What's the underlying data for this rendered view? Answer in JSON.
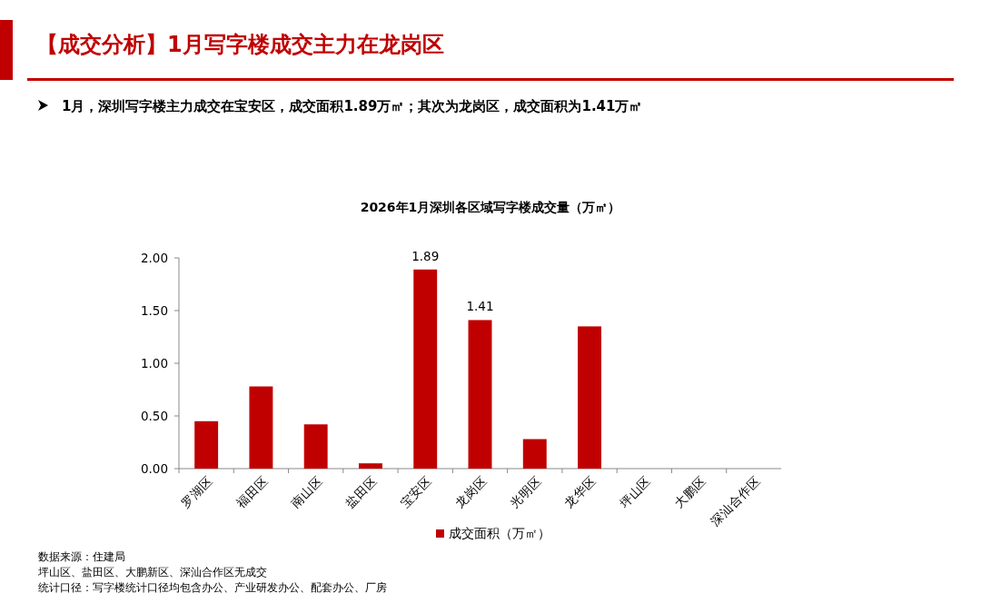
{
  "chart_data": {
    "type": "bar",
    "title": "【成交分析】1月写字楼成交主力在龙岗区",
    "subtitle": "1月，深圳写字楼主力成交在宝安区，成交面积1.89万㎡；其次为龙岗区，成交面积为1.41万㎡",
    "categories": [
      "罗湖区",
      "福田区",
      "南山区",
      "盐田区",
      "宝安区",
      "龙岗区",
      "光明区",
      "龙华区",
      "坪山区",
      "大鹏区",
      "深汕合作区"
    ],
    "series": [
      {
        "name": "成交面积（万㎡）",
        "color": "#c00000",
        "values": [
          0.45,
          0.78,
          0.42,
          0.05,
          1.89,
          1.41,
          0.28,
          1.35,
          0,
          0,
          0
        ],
        "value_labels": [
          null,
          null,
          null,
          null,
          "1.89",
          "1.41",
          null,
          null,
          null,
          null,
          null
        ]
      }
    ],
    "ylim": [
      0,
      2
    ],
    "yticks": [
      {
        "value": 0,
        "label": "0.00"
      },
      {
        "value": 0.5,
        "label": "0.50"
      },
      {
        "value": 1,
        "label": "1.00"
      },
      {
        "value": 1.5,
        "label": "1.50"
      },
      {
        "value": 2,
        "label": "2.00"
      }
    ],
    "grid": false,
    "legend": "bottom",
    "annotations": [
      "2026年1月深圳各区域写字楼成交量（万㎡）",
      "数据来源：住建局",
      "坪山区、盐田区、大鹏新区、深汕合作区无成交",
      "统计口径：写字楼统计口径均包含办公、产业研发办公、配套办公、厂房"
    ]
  }
}
